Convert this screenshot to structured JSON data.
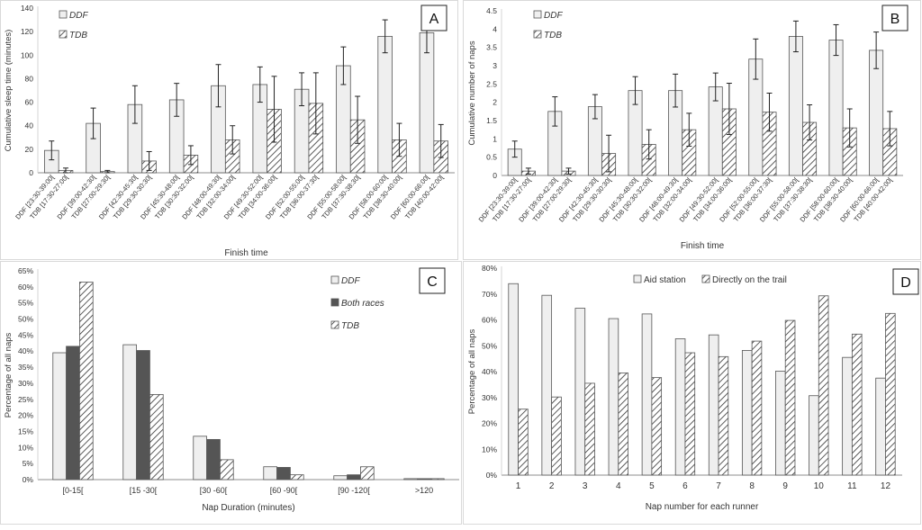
{
  "chart_data": [
    {
      "panel": "A",
      "type": "bar",
      "title": "",
      "xlabel": "Finish time",
      "ylabel": "Cumulative sleep time (minutes)",
      "ylim": [
        0,
        140
      ],
      "yticks": [
        "0",
        "20",
        "40",
        "60",
        "80",
        "100",
        "120",
        "140"
      ],
      "grid": false,
      "legend": "top-left",
      "category_labels": [
        "DDF [23:30-39:00[",
        "TDB [17:30-27:00[",
        "DDF [39:00-42:30[",
        "TDB [27:00-29:30[",
        "DDF [42:30-45:30[",
        "TDB [29:30-30:30[",
        "DDF [45:30-48:00[",
        "TDB [30:30-32:00[",
        "DDF [48:00-49:30[",
        "TDB [32:00-34:00[",
        "DDF [49:30-52:00[",
        "TDB [34:00-36:00[",
        "DDF [52:00-55:00[",
        "TDB [36:00-37:30[",
        "DDF [55:00-58:00[",
        "TDB [37:30-38:30[",
        "DDF [58:00-60:00[",
        "TDB [38:30-40:00[",
        "DDF [60:00-66:00[",
        "TDB [40:00-42:00["
      ],
      "series": [
        {
          "name": "DDF",
          "pattern": "plain",
          "values": [
            19,
            42,
            58,
            62,
            74,
            75,
            71,
            91,
            116,
            119
          ],
          "errors": [
            8,
            13,
            16,
            14,
            18,
            15,
            14,
            16,
            14,
            17
          ]
        },
        {
          "name": "TDB",
          "pattern": "hatch",
          "values": [
            2,
            1,
            10,
            15,
            28,
            54,
            59,
            45,
            28,
            27
          ],
          "errors": [
            2,
            1,
            8,
            8,
            12,
            28,
            26,
            20,
            14,
            14
          ]
        }
      ]
    },
    {
      "panel": "B",
      "type": "bar",
      "title": "",
      "xlabel": "Finish time",
      "ylabel": "Cumulative number of naps",
      "ylim": [
        0,
        4.5
      ],
      "yticks": [
        "0",
        "0.5",
        "1",
        "1.5",
        "2",
        "2.5",
        "3",
        "3.5",
        "4",
        "4.5"
      ],
      "grid": false,
      "legend": "top-left",
      "category_labels": [
        "DDF [23:30-39:00[",
        "TDB [17:30-27:00[",
        "DDF [39:00-42:30[",
        "TDB [27:00-29:30[",
        "DDF [42:30-45:30[",
        "TDB [29:30-30:30[",
        "DDF [45:30-48:00[",
        "TDB [30:30-32:00[",
        "DDF [48:00-49:30[",
        "TDB [32:00-34:00[",
        "DDF [49:30-52:00[",
        "TDB [34:00-36:00[",
        "DDF [52:00-55:00[",
        "TDB [36:00-37:30[",
        "DDF [55:00-58:00[",
        "TDB [37:30-38:30[",
        "DDF [58:00-60:00[",
        "TDB [38:30-40:00[",
        "DDF [60:00-66:00[",
        "TDB [40:00-42:00["
      ],
      "series": [
        {
          "name": "DDF",
          "pattern": "plain",
          "values": [
            0.72,
            1.75,
            1.88,
            2.32,
            2.32,
            2.42,
            3.18,
            3.8,
            3.7,
            3.42
          ],
          "errors": [
            0.22,
            0.4,
            0.33,
            0.38,
            0.45,
            0.38,
            0.55,
            0.42,
            0.42,
            0.5
          ]
        },
        {
          "name": "TDB",
          "pattern": "hatch",
          "values": [
            0.12,
            0.12,
            0.6,
            0.85,
            1.25,
            1.82,
            1.73,
            1.45,
            1.3,
            1.28
          ],
          "errors": [
            0.08,
            0.08,
            0.5,
            0.4,
            0.45,
            0.7,
            0.52,
            0.48,
            0.52,
            0.47
          ]
        }
      ]
    },
    {
      "panel": "C",
      "type": "bar",
      "title": "",
      "xlabel": "Nap Duration (minutes)",
      "ylabel": "Percentage of all naps",
      "ylim": [
        0,
        65
      ],
      "yticks": [
        "0%",
        "5%",
        "10%",
        "15%",
        "20%",
        "25%",
        "30%",
        "35%",
        "40%",
        "45%",
        "50%",
        "55%",
        "60%",
        "65%"
      ],
      "grid": false,
      "legend": "top-right",
      "categories": [
        "[0-15[",
        "[15 -30[",
        "[30 -60[",
        "[60 -90[",
        "[90 -120[",
        ">120"
      ],
      "series": [
        {
          "name": "DDF",
          "pattern": "plain",
          "values": [
            39.5,
            42,
            13.5,
            4,
            1.2,
            0.3
          ]
        },
        {
          "name": "Both races",
          "pattern": "dark",
          "values": [
            41.5,
            40.2,
            12.5,
            3.8,
            1.5,
            0.3
          ]
        },
        {
          "name": "TDB",
          "pattern": "hatch",
          "values": [
            61.5,
            26.5,
            6.2,
            1.5,
            4,
            0.3
          ]
        }
      ]
    },
    {
      "panel": "D",
      "type": "bar",
      "title": "",
      "xlabel": "Nap number for each runner",
      "ylabel": "Percentage of all naps",
      "ylim": [
        0,
        80
      ],
      "yticks": [
        "0%",
        "10%",
        "20%",
        "30%",
        "40%",
        "50%",
        "60%",
        "70%",
        "80%"
      ],
      "grid": false,
      "legend": "top-center",
      "categories": [
        "1",
        "2",
        "3",
        "4",
        "5",
        "6",
        "7",
        "8",
        "9",
        "10",
        "11",
        "12"
      ],
      "series": [
        {
          "name": "Aid station",
          "pattern": "plain",
          "values": [
            74,
            69.5,
            64.5,
            60.5,
            62.3,
            52.7,
            54.2,
            48.2,
            40.2,
            30.7,
            45.5,
            37.5
          ]
        },
        {
          "name": "Directly on the trail",
          "pattern": "hatch",
          "values": [
            25.5,
            30.2,
            35.5,
            39.5,
            37.7,
            47.3,
            45.8,
            51.8,
            59.8,
            69.3,
            54.5,
            62.5
          ]
        }
      ]
    }
  ]
}
